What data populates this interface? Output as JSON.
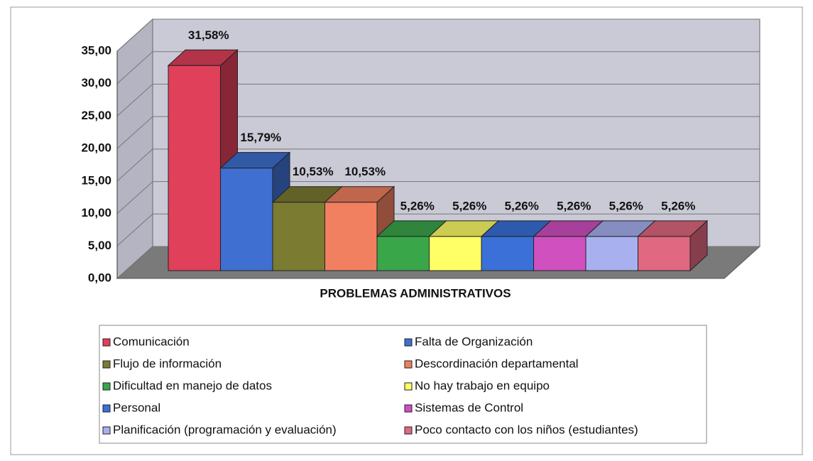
{
  "chart_data": {
    "type": "bar",
    "x_label": "PROBLEMAS ADMINISTRATIVOS",
    "categories": [
      "Comunicación",
      "Falta de Organización",
      "Flujo de información",
      "Descordinación departamental",
      "Dificultad en manejo de datos",
      "No hay trabajo en equipo",
      "Personal",
      "Sistemas de Control",
      "Planificación (programación y evaluación)",
      "Poco contacto con los niños (estudiantes)"
    ],
    "values": [
      31.58,
      15.79,
      10.53,
      10.53,
      5.26,
      5.26,
      5.26,
      5.26,
      5.26,
      5.26
    ],
    "value_labels": [
      "31,58%",
      "15,79%",
      "10,53%",
      "10,53%",
      "5,26%",
      "5,26%",
      "5,26%",
      "5,26%",
      "5,26%",
      "5,26%"
    ],
    "colors": [
      "#e0405a",
      "#3f6fd0",
      "#7b7b32",
      "#f08060",
      "#3aa64a",
      "#ffff66",
      "#3a70d8",
      "#d050c0",
      "#a8b0f0",
      "#e06880"
    ],
    "ylim": [
      0,
      35
    ],
    "yticks": [
      {
        "value": 0,
        "label": "0,00"
      },
      {
        "value": 5,
        "label": "5,00"
      },
      {
        "value": 10,
        "label": "10,00"
      },
      {
        "value": 15,
        "label": "15,00"
      },
      {
        "value": 20,
        "label": "20,00"
      },
      {
        "value": 25,
        "label": "25,00"
      },
      {
        "value": 30,
        "label": "30,00"
      },
      {
        "value": 35,
        "label": "35,00"
      }
    ],
    "grid": true
  }
}
